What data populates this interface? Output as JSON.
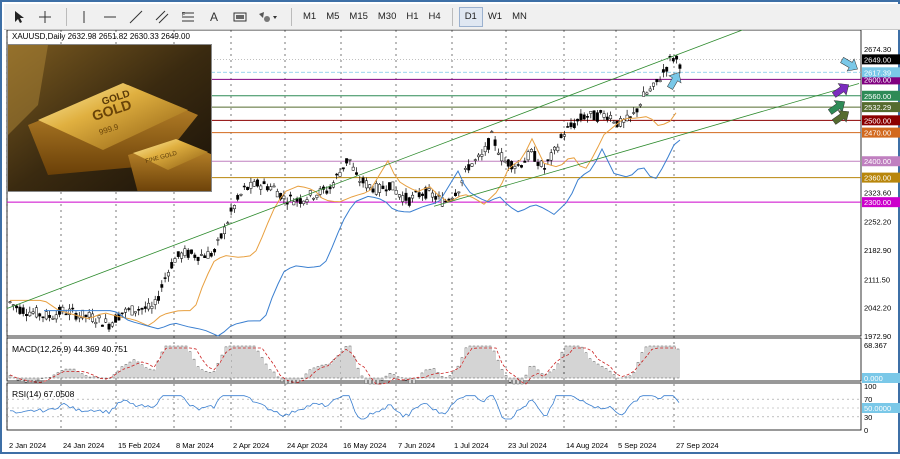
{
  "toolbar": {
    "timeframes": [
      "M1",
      "M5",
      "M15",
      "M30",
      "H1",
      "H4",
      "D1",
      "W1",
      "MN"
    ],
    "active_timeframe": "D1",
    "text_tool_label": "A"
  },
  "chart": {
    "symbol_line": "XAUUSD,Daily  2632.98 2651.82 2630.33 2649.00",
    "price_axis": [
      "2674.30",
      "2600.00",
      "2560.00",
      "2532.29",
      "2500.00",
      "2470.00",
      "2400.00",
      "2360.00",
      "2323.60",
      "2300.00",
      "2252.20",
      "2182.90",
      "2111.50",
      "2042.20",
      "1972.90"
    ],
    "current_price": "2649.00",
    "hidden_label": "2617.39",
    "levels": [
      {
        "price": "2600.00",
        "color": "#800080"
      },
      {
        "price": "2560.00",
        "color": "#2e8b57"
      },
      {
        "price": "2532.29",
        "color": "#556b2f"
      },
      {
        "price": "2500.00",
        "color": "#8b0000"
      },
      {
        "price": "2470.00",
        "color": "#d2691e"
      },
      {
        "price": "2400.00",
        "color": "#c080c0"
      },
      {
        "price": "2360.00",
        "color": "#b8860b"
      },
      {
        "price": "2300.00",
        "color": "#cc00cc"
      }
    ],
    "date_axis": [
      "2 Jan 2024",
      "24 Jan 2024",
      "15 Feb 2024",
      "8 Mar 2024",
      "2 Apr 2024",
      "24 Apr 2024",
      "16 May 2024",
      "7 Jun 2024",
      "1 Jul 2024",
      "23 Jul 2024",
      "14 Aug 2024",
      "5 Sep 2024",
      "27 Sep 2024"
    ],
    "gold_image_text": [
      "GOLD",
      "GOLD",
      "999.9",
      "FINE GOLD"
    ]
  },
  "macd": {
    "title": "MACD(12,26,9) 44.369 40.751",
    "axis_top": "68.367",
    "axis_zero": "0.000"
  },
  "rsi": {
    "title": "RSI(14) 67.0508",
    "axis": [
      "100",
      "70",
      "50.0000",
      "30",
      "0"
    ]
  },
  "colors": {
    "up_candle": "#000000",
    "ma_orange": "#e8a040",
    "ma_blue": "#3a7fd0",
    "channel": "#2e8b2e",
    "macd_signal": "#cc2222"
  }
}
